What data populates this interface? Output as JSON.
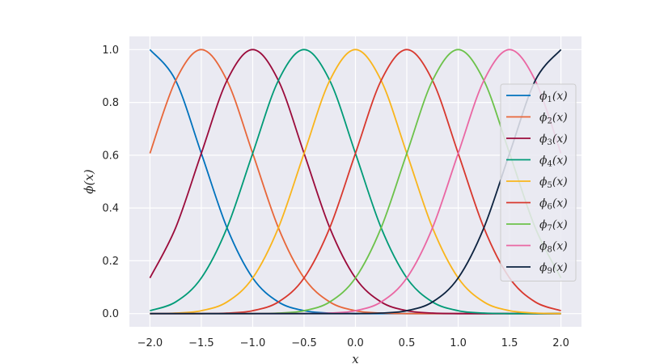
{
  "chart_data": {
    "type": "line",
    "title": "",
    "xlabel": "x",
    "ylabel": "ϕ(x)",
    "xlim": [
      -2.2,
      2.2
    ],
    "ylim": [
      -0.05,
      1.05
    ],
    "xticks": [
      "−2.0",
      "−1.5",
      "−1.0",
      "−0.5",
      "0.0",
      "0.5",
      "1.0",
      "1.5",
      "2.0"
    ],
    "xtick_values": [
      -2.0,
      -1.5,
      -1.0,
      -0.5,
      0.0,
      0.5,
      1.0,
      1.5,
      2.0
    ],
    "yticks": [
      "0.0",
      "0.2",
      "0.4",
      "0.6",
      "0.8",
      "1.0"
    ],
    "ytick_values": [
      0.0,
      0.2,
      0.4,
      0.6,
      0.8,
      1.0
    ],
    "grid": true,
    "background": "#eaeaf2",
    "legend_position": "right",
    "x": [
      -2.0,
      -1.75,
      -1.5,
      -1.25,
      -1.0,
      -0.75,
      -0.5,
      -0.25,
      0.0,
      0.25,
      0.5,
      0.75,
      1.0,
      1.25,
      1.5,
      1.75,
      2.0
    ],
    "series": [
      {
        "name": "ϕ₁(x)",
        "sym": "ϕ",
        "sub": "1",
        "arg": "(x)",
        "color": "#0072bd",
        "values": [
          1.0,
          0.883,
          0.607,
          0.325,
          0.135,
          0.044,
          0.011,
          0.002,
          0.0,
          0.0,
          0.0,
          0.0,
          0.0,
          0.0,
          0.0,
          0.0,
          0.0
        ]
      },
      {
        "name": "ϕ₂(x)",
        "sym": "ϕ",
        "sub": "2",
        "arg": "(x)",
        "color": "#e8673a",
        "values": [
          0.607,
          0.883,
          1.0,
          0.883,
          0.607,
          0.325,
          0.135,
          0.044,
          0.011,
          0.002,
          0.0,
          0.0,
          0.0,
          0.0,
          0.0,
          0.0,
          0.0
        ]
      },
      {
        "name": "ϕ₃(x)",
        "sym": "ϕ",
        "sub": "3",
        "arg": "(x)",
        "color": "#9b0b3b",
        "values": [
          0.135,
          0.325,
          0.607,
          0.883,
          1.0,
          0.883,
          0.607,
          0.325,
          0.135,
          0.044,
          0.011,
          0.002,
          0.0,
          0.0,
          0.0,
          0.0,
          0.0
        ]
      },
      {
        "name": "ϕ₄(x)",
        "sym": "ϕ",
        "sub": "4",
        "arg": "(x)",
        "color": "#009b77",
        "values": [
          0.011,
          0.044,
          0.135,
          0.325,
          0.607,
          0.883,
          1.0,
          0.883,
          0.607,
          0.325,
          0.135,
          0.044,
          0.011,
          0.002,
          0.0,
          0.0,
          0.0
        ]
      },
      {
        "name": "ϕ₅(x)",
        "sym": "ϕ",
        "sub": "5",
        "arg": "(x)",
        "color": "#f9b51c",
        "values": [
          0.0,
          0.002,
          0.011,
          0.044,
          0.135,
          0.325,
          0.607,
          0.883,
          1.0,
          0.883,
          0.607,
          0.325,
          0.135,
          0.044,
          0.011,
          0.002,
          0.0
        ]
      },
      {
        "name": "ϕ₆(x)",
        "sym": "ϕ",
        "sub": "6",
        "arg": "(x)",
        "color": "#d8382e",
        "values": [
          0.0,
          0.0,
          0.0,
          0.002,
          0.011,
          0.044,
          0.135,
          0.325,
          0.607,
          0.883,
          1.0,
          0.883,
          0.607,
          0.325,
          0.135,
          0.044,
          0.011
        ]
      },
      {
        "name": "ϕ₇(x)",
        "sym": "ϕ",
        "sub": "7",
        "arg": "(x)",
        "color": "#6cc24a",
        "values": [
          0.0,
          0.0,
          0.0,
          0.0,
          0.0,
          0.002,
          0.011,
          0.044,
          0.135,
          0.325,
          0.607,
          0.883,
          1.0,
          0.883,
          0.607,
          0.325,
          0.135
        ]
      },
      {
        "name": "ϕ₈(x)",
        "sym": "ϕ",
        "sub": "8",
        "arg": "(x)",
        "color": "#ea67a3",
        "values": [
          0.0,
          0.0,
          0.0,
          0.0,
          0.0,
          0.0,
          0.0,
          0.002,
          0.011,
          0.044,
          0.135,
          0.325,
          0.607,
          0.883,
          1.0,
          0.883,
          0.607
        ]
      },
      {
        "name": "ϕ₉(x)",
        "sym": "ϕ",
        "sub": "9",
        "arg": "(x)",
        "color": "#0d2340",
        "values": [
          0.0,
          0.0,
          0.0,
          0.0,
          0.0,
          0.0,
          0.0,
          0.0,
          0.0,
          0.002,
          0.011,
          0.044,
          0.135,
          0.325,
          0.607,
          0.883,
          1.0
        ]
      }
    ]
  }
}
